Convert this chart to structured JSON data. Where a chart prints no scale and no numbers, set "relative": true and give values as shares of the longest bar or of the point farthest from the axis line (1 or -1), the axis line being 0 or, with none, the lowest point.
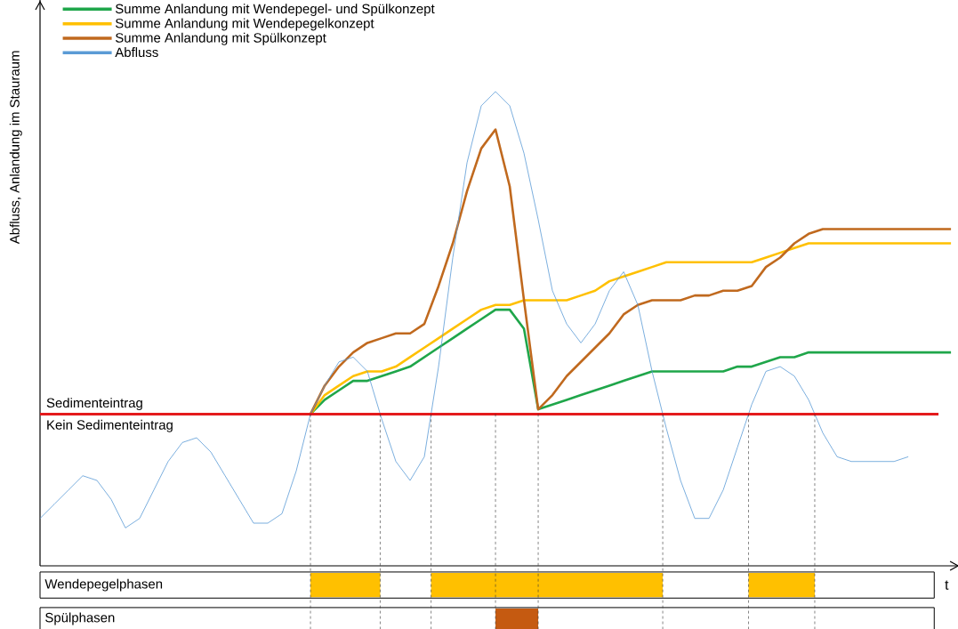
{
  "chart_data": {
    "type": "line",
    "relative": true,
    "ylabel": "Abfluss, Anlandung im Stauraum",
    "xlabel": "t",
    "tick_labels": false,
    "legend": "top left",
    "categories": [
      null,
      null,
      null,
      null,
      null,
      null,
      null,
      null,
      null,
      null,
      null,
      null,
      null,
      null,
      null,
      null,
      null,
      null,
      null,
      null,
      null,
      null,
      null,
      null,
      null,
      null,
      null,
      null,
      null,
      null,
      null,
      null,
      null,
      null,
      null,
      null,
      null,
      null,
      null,
      null,
      null,
      null,
      null,
      null,
      null,
      null,
      null,
      null,
      null,
      null,
      null,
      null,
      null,
      null,
      null,
      null,
      null,
      null,
      null,
      null,
      null,
      null,
      null,
      null,
      null
    ],
    "series": [
      {
        "name": "Summe Anlandung mit Wendepegel- und Spülkonzept",
        "color": "#1fa64a",
        "values": [
          null,
          null,
          null,
          null,
          null,
          null,
          null,
          null,
          null,
          null,
          null,
          null,
          null,
          null,
          null,
          null,
          null,
          null,
          null,
          0.32,
          0.35,
          0.37,
          0.39,
          0.39,
          0.4,
          0.41,
          0.42,
          0.44,
          0.46,
          0.48,
          0.5,
          0.52,
          0.54,
          0.54,
          0.5,
          0.33,
          0.34,
          0.35,
          0.36,
          0.37,
          0.38,
          0.39,
          0.4,
          0.41,
          0.41,
          0.41,
          0.41,
          0.41,
          0.41,
          0.42,
          0.42,
          0.43,
          0.44,
          0.44,
          0.45,
          0.45,
          0.45,
          0.45,
          0.45,
          0.45,
          0.45,
          0.45,
          0.45,
          0.45,
          0.45
        ]
      },
      {
        "name": "Summe Anlandung mit Wendepegelkonzept",
        "color": "#ffc000",
        "values": [
          null,
          null,
          null,
          null,
          null,
          null,
          null,
          null,
          null,
          null,
          null,
          null,
          null,
          null,
          null,
          null,
          null,
          null,
          null,
          0.32,
          0.36,
          0.38,
          0.4,
          0.41,
          0.41,
          0.42,
          0.44,
          0.46,
          0.48,
          0.5,
          0.52,
          0.54,
          0.55,
          0.55,
          0.56,
          0.56,
          0.56,
          0.56,
          0.57,
          0.58,
          0.6,
          0.61,
          0.62,
          0.63,
          0.64,
          0.64,
          0.64,
          0.64,
          0.64,
          0.64,
          0.64,
          0.65,
          0.66,
          0.67,
          0.68,
          0.68,
          0.68,
          0.68,
          0.68,
          0.68,
          0.68,
          0.68,
          0.68,
          0.68,
          0.68
        ]
      },
      {
        "name": "Summe Anlandung mit Spülkonzept",
        "color": "#c0691e",
        "values": [
          null,
          null,
          null,
          null,
          null,
          null,
          null,
          null,
          null,
          null,
          null,
          null,
          null,
          null,
          null,
          null,
          null,
          null,
          null,
          0.32,
          0.38,
          0.42,
          0.45,
          0.47,
          0.48,
          0.49,
          0.49,
          0.51,
          0.59,
          0.68,
          0.79,
          0.88,
          0.92,
          0.8,
          0.56,
          0.33,
          0.36,
          0.4,
          0.43,
          0.46,
          0.49,
          0.53,
          0.55,
          0.56,
          0.56,
          0.56,
          0.57,
          0.57,
          0.58,
          0.58,
          0.59,
          0.63,
          0.65,
          0.68,
          0.7,
          0.71,
          0.71,
          0.71,
          0.71,
          0.71,
          0.71,
          0.71,
          0.71,
          0.71,
          0.71
        ]
      },
      {
        "name": "Abfluss",
        "color": "#5b9bd5",
        "values": [
          0.1,
          0.13,
          0.16,
          0.19,
          0.18,
          0.14,
          0.08,
          0.1,
          0.16,
          0.22,
          0.26,
          0.27,
          0.24,
          0.19,
          0.14,
          0.09,
          0.09,
          0.11,
          0.2,
          0.32,
          0.38,
          0.43,
          0.44,
          0.41,
          0.31,
          0.22,
          0.18,
          0.23,
          0.42,
          0.65,
          0.85,
          0.97,
          1.0,
          0.97,
          0.87,
          0.73,
          0.58,
          0.51,
          0.47,
          0.51,
          0.58,
          0.62,
          0.55,
          0.41,
          0.29,
          0.18,
          0.1,
          0.1,
          0.16,
          0.25,
          0.34,
          0.41,
          0.42,
          0.4,
          0.35,
          0.28,
          0.23,
          0.22,
          0.22,
          0.22,
          0.22,
          0.23,
          null,
          null,
          null
        ]
      }
    ],
    "ref_lines": [
      {
        "axis": "y",
        "value": 0.32,
        "label": "Sedimenteintrag",
        "color": "#e41a1c"
      }
    ],
    "annotations": [
      "Kein Sedimenteintrag",
      "Wendepegelphasen",
      "Spülphasen"
    ]
  }
}
